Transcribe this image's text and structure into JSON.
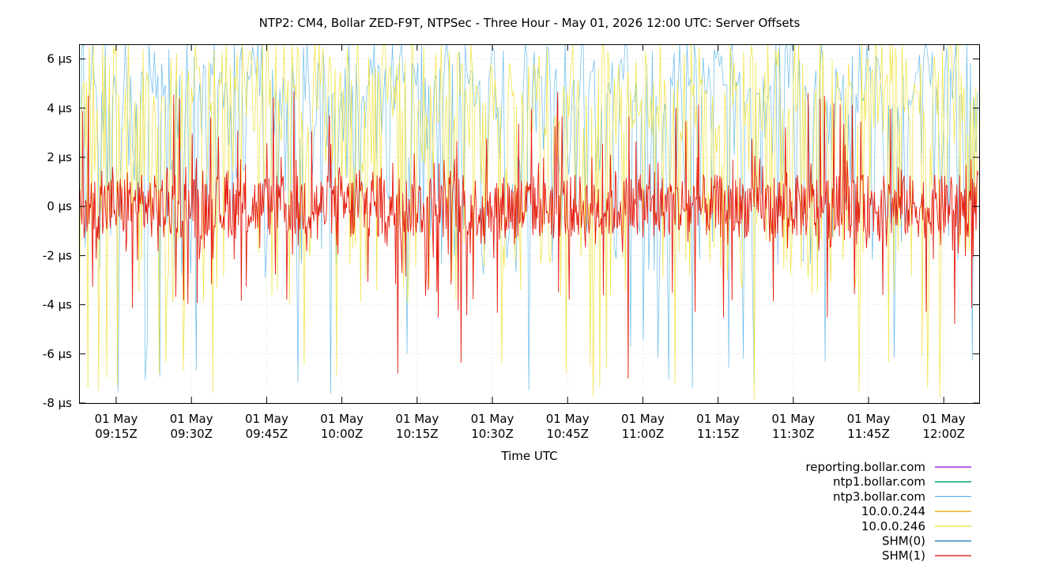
{
  "chart_data": {
    "type": "line",
    "title": "NTP2: CM4, Bollar ZED-F9T, NTPSec - Three Hour - May 01, 2026 12:00 UTC: Server Offsets",
    "xlabel": "Time UTC",
    "ylabel": "",
    "x_range_minutes": [
      9.0,
      12.25
    ],
    "x_range": [
      "09:07Z",
      "12:04Z"
    ],
    "ylim": [
      -8,
      6.6
    ],
    "y_unit": "µs",
    "grid": true,
    "legend_position": "bottom-right",
    "y_ticks": [
      {
        "value": 6,
        "label": "6 µs"
      },
      {
        "value": 4,
        "label": "4 µs"
      },
      {
        "value": 2,
        "label": "2 µs"
      },
      {
        "value": 0,
        "label": "0 µs"
      },
      {
        "value": -2,
        "label": "-2 µs"
      },
      {
        "value": -4,
        "label": "-4 µs"
      },
      {
        "value": -6,
        "label": "-6 µs"
      },
      {
        "value": -8,
        "label": "-8 µs"
      }
    ],
    "x_ticks": [
      {
        "time": "09:15Z",
        "date": "01 May"
      },
      {
        "time": "09:30Z",
        "date": "01 May"
      },
      {
        "time": "09:45Z",
        "date": "01 May"
      },
      {
        "time": "10:00Z",
        "date": "01 May"
      },
      {
        "time": "10:15Z",
        "date": "01 May"
      },
      {
        "time": "10:30Z",
        "date": "01 May"
      },
      {
        "time": "10:45Z",
        "date": "01 May"
      },
      {
        "time": "11:00Z",
        "date": "01 May"
      },
      {
        "time": "11:15Z",
        "date": "01 May"
      },
      {
        "time": "11:30Z",
        "date": "01 May"
      },
      {
        "time": "11:45Z",
        "date": "01 May"
      },
      {
        "time": "12:00Z",
        "date": "01 May"
      }
    ],
    "series": [
      {
        "name": "reporting.bollar.com",
        "color": "#9400d3",
        "visible_in_plot": false
      },
      {
        "name": "ntp1.bollar.com",
        "color": "#009e73",
        "visible_in_plot": false
      },
      {
        "name": "ntp3.bollar.com",
        "color": "#56b4e9",
        "typical_range": [
          -7.7,
          6.6
        ],
        "spike_low": -7.7
      },
      {
        "name": "10.0.0.244",
        "color": "#e69f00",
        "visible_in_plot": false
      },
      {
        "name": "10.0.0.246",
        "color": "#f0e442",
        "typical_range": [
          -8,
          6.6
        ],
        "spike_low": -8
      },
      {
        "name": "SHM(0)",
        "color": "#0072b2",
        "visible_in_plot": false
      },
      {
        "name": "SHM(1)",
        "color": "#e51e10",
        "typical_range": [
          -5,
          5
        ],
        "core_range": [
          -1.5,
          1.5
        ],
        "spike_low": -8
      }
    ]
  }
}
